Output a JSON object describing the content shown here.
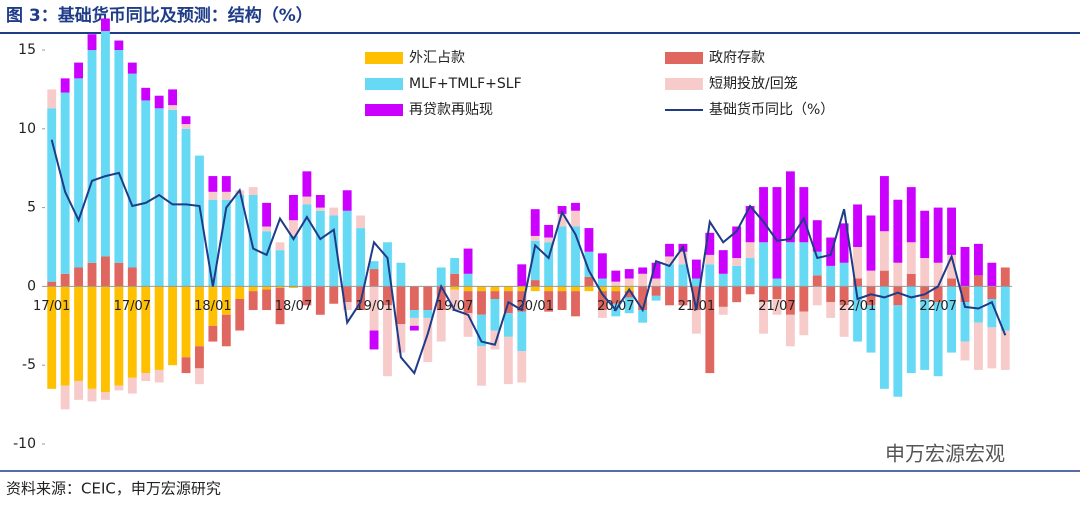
{
  "chart_data": {
    "type": "stacked-bar-line",
    "title": "图 3：基础货币同比及预测：结构（%）",
    "source": "资料来源：CEIC，申万宏源研究",
    "watermark": "申万宏源宏观",
    "categories": [
      "17/01",
      null,
      null,
      null,
      null,
      null,
      "17/07",
      null,
      null,
      null,
      null,
      null,
      "18/01",
      null,
      null,
      null,
      null,
      null,
      "18/07",
      null,
      null,
      null,
      null,
      null,
      "19/01",
      null,
      null,
      null,
      null,
      null,
      "19/07",
      null,
      null,
      null,
      null,
      null,
      "20/01",
      null,
      null,
      null,
      null,
      null,
      "20/07",
      null,
      null,
      null,
      null,
      null,
      "21/01",
      null,
      null,
      null,
      null,
      null,
      "21/07",
      null,
      null,
      null,
      null,
      null,
      "22/01",
      null,
      null,
      null,
      null,
      null,
      "22/07",
      null,
      null,
      null,
      null,
      null
    ],
    "series": [
      {
        "name": "外汇占款",
        "color": "#FFC000",
        "values": [
          -6.5,
          -6.3,
          -6,
          -6.5,
          -6.7,
          -6.3,
          -5.8,
          -5.5,
          -5.3,
          -5,
          -4.5,
          -3.8,
          -2.5,
          -1.8,
          -0.8,
          -0.3,
          -0.2,
          -0.1,
          -0.1,
          0,
          0,
          0,
          0,
          0,
          0,
          0,
          0,
          0,
          0,
          0,
          -0.2,
          -0.3,
          -0.3,
          -0.3,
          -0.3,
          -0.3,
          -0.3,
          -0.3,
          -0.3,
          -0.3,
          -0.3,
          -0.3,
          -0.3,
          -0.3,
          0,
          0,
          0,
          0,
          0,
          0,
          0,
          0,
          0,
          0,
          0,
          0,
          0,
          0,
          0,
          0,
          0,
          0,
          0,
          0,
          0,
          0,
          0,
          0,
          0,
          0,
          0,
          0
        ]
      },
      {
        "name": "政府存款",
        "color": "#E06660",
        "values": [
          0.3,
          0.8,
          1.2,
          1.5,
          1.9,
          1.5,
          1.2,
          0,
          0,
          0,
          -1,
          -1.4,
          -1,
          -2,
          -2,
          -1.2,
          -1.3,
          -2.3,
          0,
          -1.2,
          -1.8,
          -1.1,
          -1,
          -1.5,
          1.1,
          -1.2,
          -2.4,
          -1.5,
          -1.5,
          -1.5,
          0.8,
          -1.4,
          -1.5,
          -0.5,
          -1.4,
          -1.3,
          0.4,
          -1.3,
          -1.2,
          -1.6,
          0.6,
          -1.2,
          -0.8,
          -0.4,
          -1.5,
          -0.6,
          -1.2,
          -1.2,
          -1.5,
          -5.5,
          -1.3,
          -1,
          -0.5,
          -1,
          -0.8,
          -1.8,
          -1.6,
          0.7,
          -1,
          -1.2,
          0.5,
          -1.2,
          1,
          -1.2,
          0.8,
          -0.8,
          -1,
          0.5,
          -1,
          0.7,
          -0.8,
          1.2
        ]
      },
      {
        "name": "MLF+TMLF+SLF",
        "color": "#66D9F5",
        "values": [
          11,
          11.5,
          12,
          13.5,
          14.3,
          13.5,
          12.3,
          11.8,
          11.3,
          11.2,
          10,
          8.3,
          5.5,
          5.5,
          5.8,
          5.8,
          3.5,
          2.3,
          3.2,
          5.2,
          4.8,
          4.5,
          4.8,
          3.7,
          0.5,
          2.8,
          1.5,
          -0.5,
          -0.5,
          1.2,
          1,
          0.8,
          -2,
          -2,
          -1.5,
          -2.5,
          2.5,
          2.8,
          3.8,
          3.8,
          1.6,
          0.5,
          -0.8,
          -1,
          -0.8,
          -0.3,
          1.4,
          1.4,
          0.5,
          1.4,
          0.8,
          1.3,
          1.8,
          2.8,
          0.5,
          2.8,
          2.8,
          1.5,
          1.3,
          1.5,
          -3.5,
          -3,
          -6.5,
          -5.8,
          -5.5,
          -4.5,
          -4.7,
          -4.2,
          -2.5,
          -2.3,
          -1.8,
          -2.8
        ]
      },
      {
        "name": "短期投放/回笼",
        "color": "#F8CBCB",
        "values": [
          1.2,
          -1.5,
          -1.2,
          -0.8,
          -0.5,
          -0.3,
          -1,
          -0.5,
          -0.8,
          0.3,
          0.3,
          -1,
          0.5,
          0.5,
          0.3,
          0.5,
          0.3,
          0.5,
          1,
          0.5,
          0.2,
          0.5,
          -0.5,
          0.8,
          -2.8,
          -4.5,
          -1.8,
          -0.5,
          -2.8,
          -2,
          -1.3,
          -1.5,
          -2.5,
          -1.2,
          -3,
          -2,
          0.3,
          0.3,
          0.8,
          1,
          0,
          -0.5,
          0.3,
          0.5,
          0.8,
          0.5,
          0.5,
          0.8,
          -1.5,
          0.6,
          -0.5,
          0.5,
          1,
          -2,
          -1,
          -2,
          -1.5,
          -1.2,
          -1,
          -2,
          2,
          1,
          2.5,
          1.5,
          2,
          1.8,
          1.5,
          1.5,
          -1.2,
          -3,
          -2.6,
          -2.5
        ]
      },
      {
        "name": "再贷款再贴现",
        "color": "#CC00FF",
        "values": [
          0,
          0.9,
          1,
          1,
          0.8,
          0.6,
          0.7,
          0.8,
          0.8,
          1,
          0.5,
          0,
          1,
          1,
          0,
          0,
          1.5,
          0,
          1.6,
          1.6,
          0.8,
          0,
          1.3,
          0,
          -1.2,
          0,
          0,
          -0.3,
          0,
          0,
          0,
          1.6,
          0,
          0,
          0,
          1.4,
          1.7,
          0.8,
          0.5,
          0.5,
          1.5,
          1.6,
          0.7,
          0.6,
          0.4,
          1,
          0.8,
          0.5,
          1.2,
          1.4,
          1.5,
          2,
          2.3,
          3.5,
          5.8,
          4.5,
          3.5,
          2,
          1.8,
          2.5,
          2.7,
          3.5,
          3.5,
          4,
          3.5,
          3,
          3.5,
          3,
          2.5,
          2,
          1.5,
          0
        ]
      }
    ],
    "line": {
      "name": "基础货币同比（%）",
      "color": "#1F3C88",
      "values": [
        9.3,
        6,
        4.2,
        6.7,
        7,
        7.2,
        5.1,
        5.3,
        5.8,
        5.2,
        5.2,
        5.1,
        0,
        5,
        6.1,
        2.4,
        2,
        4.3,
        3,
        4.4,
        3,
        3.6,
        -2.3,
        -1,
        2.8,
        1.8,
        -4.5,
        -5.5,
        -3,
        0,
        -1.5,
        -1.8,
        -3.5,
        -3.7,
        -1,
        -1.5,
        2.6,
        1.8,
        4.7,
        3.3,
        1,
        -0.5,
        -1.5,
        -0.2,
        -1.5,
        1.6,
        1.3,
        2.5,
        -1.5,
        4.1,
        2.8,
        3.5,
        5.1,
        4.1,
        2.9,
        3,
        4.3,
        1.8,
        2,
        4.9,
        -0.8,
        -0.5,
        -0.7,
        -0.4,
        -0.7,
        -0.5,
        0,
        1.9,
        -1.3,
        -1.4,
        -1,
        -3.1
      ]
    },
    "ylim": [
      -10,
      15
    ],
    "yticks": [
      15,
      10,
      5,
      0,
      -5,
      -10
    ]
  }
}
